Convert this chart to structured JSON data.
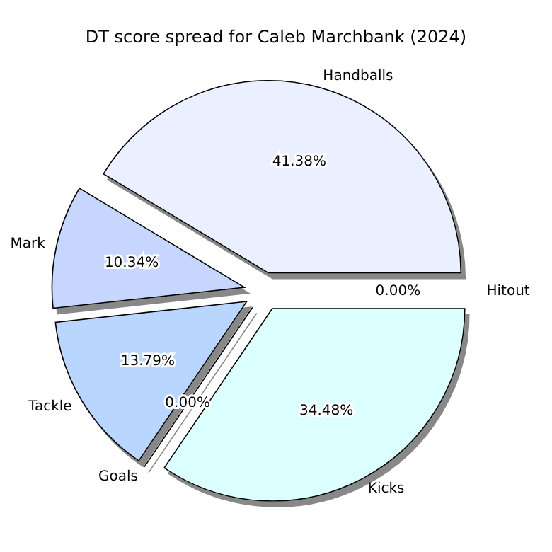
{
  "chart_data": {
    "type": "pie",
    "title": "DT score spread for Caleb Marchbank (2024)",
    "categories": [
      "Handballs",
      "Mark",
      "Tackle",
      "Goals",
      "Kicks",
      "Hitout"
    ],
    "values": [
      41.38,
      10.34,
      13.79,
      0,
      34.48,
      0
    ],
    "value_labels": [
      "41.38%",
      "10.34%",
      "13.79%",
      "0.00%",
      "34.48%",
      "0.00%"
    ],
    "colors": [
      "#eaf0ff",
      "#c6d6ff",
      "#b8d6ff",
      "#dce8ff",
      "#dcffff",
      "#f0f4ff"
    ],
    "legend": false
  }
}
